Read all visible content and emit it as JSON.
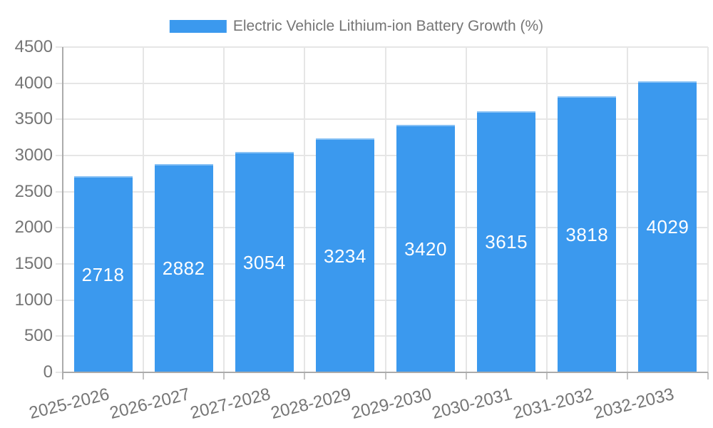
{
  "chart_data": {
    "type": "bar",
    "title": "Electric Vehicle Lithium-ion Battery Growth (%)",
    "legend_position": "top",
    "categories": [
      "2025-2026",
      "2026-2027",
      "2027-2028",
      "2028-2029",
      "2029-2030",
      "2030-2031",
      "2031-2032",
      "2032-2033"
    ],
    "series": [
      {
        "name": "Electric Vehicle Lithium-ion Battery Growth (%)",
        "values": [
          2718,
          2882,
          3054,
          3234,
          3420,
          3615,
          3818,
          4029
        ]
      }
    ],
    "value_labels": [
      "2718",
      "2882",
      "3054",
      "3234",
      "3420",
      "3615",
      "3818",
      "4029"
    ],
    "xlabel": "",
    "ylabel": "",
    "ylim": [
      0,
      4500
    ],
    "yticks": [
      0,
      500,
      1000,
      1500,
      2000,
      2500,
      3000,
      3500,
      4000,
      4500
    ],
    "grid": true,
    "colors": {
      "bar_fill": "#3B99EE",
      "bar_border_top": "#FFFFFF66",
      "value_text": "#FFFFFF",
      "axis_text": "#757575",
      "gridline": "#E6E6E6",
      "axis_line": "#ABABAB",
      "tick_mark": "#C4C4C4"
    }
  }
}
